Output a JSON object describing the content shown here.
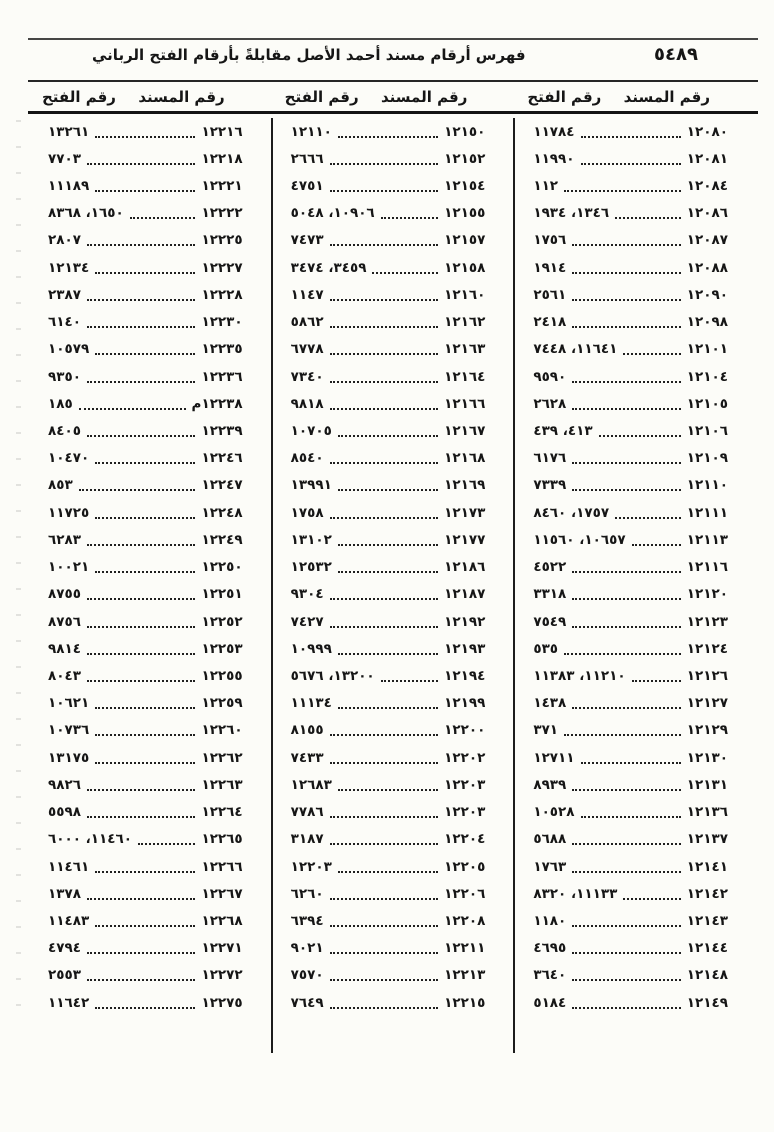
{
  "page": {
    "number": "٥٤٨٩",
    "title": "فهرس أرقام مسند أحمد الأصل مقابلةً بأرقام الفتح الرباني"
  },
  "table": {
    "header_musnad": "رقم المسند",
    "header_fath": "رقم الفتح",
    "columns": [
      {
        "rows": [
          {
            "musnad": "١٢٠٨٠",
            "fath": "١١٧٨٤"
          },
          {
            "musnad": "١٢٠٨١",
            "fath": "١١٩٩٠"
          },
          {
            "musnad": "١٢٠٨٤",
            "fath": "١١٢"
          },
          {
            "musnad": "١٢٠٨٦",
            "fath": "١٣٤٦، ١٩٣٤"
          },
          {
            "musnad": "١٢٠٨٧",
            "fath": "١٧٥٦"
          },
          {
            "musnad": "١٢٠٨٨",
            "fath": "١٩١٤"
          },
          {
            "musnad": "١٢٠٩٠",
            "fath": "٢٥٦١"
          },
          {
            "musnad": "١٢٠٩٨",
            "fath": "٢٤١٨"
          },
          {
            "musnad": "١٢١٠١",
            "fath": "١١٦٤١، ٧٤٤٨"
          },
          {
            "musnad": "١٢١٠٤",
            "fath": "٩٥٩٠"
          },
          {
            "musnad": "١٢١٠٥",
            "fath": "٢٦٢٨"
          },
          {
            "musnad": "١٢١٠٦",
            "fath": "٤١٣، ٤٣٩"
          },
          {
            "musnad": "١٢١٠٩",
            "fath": "٦١٧٦"
          },
          {
            "musnad": "١٢١١٠",
            "fath": "٧٣٣٩"
          },
          {
            "musnad": "١٢١١١",
            "fath": "١٧٥٧، ٨٤٦٠"
          },
          {
            "musnad": "١٢١١٣",
            "fath": "١٠٦٥٧، ١١٥٦٠"
          },
          {
            "musnad": "١٢١١٦",
            "fath": "٤٥٢٢"
          },
          {
            "musnad": "١٢١٢٠",
            "fath": "٣٣١٨"
          },
          {
            "musnad": "١٢١٢٣",
            "fath": "٧٥٤٩"
          },
          {
            "musnad": "١٢١٢٤",
            "fath": "٥٣٥"
          },
          {
            "musnad": "١٢١٢٦",
            "fath": "١١٢١٠، ١١٣٨٣"
          },
          {
            "musnad": "١٢١٢٧",
            "fath": "١٤٣٨"
          },
          {
            "musnad": "١٢١٢٩",
            "fath": "٣٧١"
          },
          {
            "musnad": "١٢١٣٠",
            "fath": "١٢٧١١"
          },
          {
            "musnad": "١٢١٣١",
            "fath": "٨٩٣٩"
          },
          {
            "musnad": "١٢١٣٦",
            "fath": "١٠٥٢٨"
          },
          {
            "musnad": "١٢١٣٧",
            "fath": "٥٦٨٨"
          },
          {
            "musnad": "١٢١٤١",
            "fath": "١٧٦٣"
          },
          {
            "musnad": "١٢١٤٢",
            "fath": "١١١٣٣، ٨٣٢٠"
          },
          {
            "musnad": "١٢١٤٣",
            "fath": "١١٨٠"
          },
          {
            "musnad": "١٢١٤٤",
            "fath": "٤٦٩٥"
          },
          {
            "musnad": "١٢١٤٨",
            "fath": "٣٦٤٠"
          },
          {
            "musnad": "١٢١٤٩",
            "fath": "٥١٨٤"
          }
        ]
      },
      {
        "rows": [
          {
            "musnad": "١٢١٥٠",
            "fath": "١٢١١٠"
          },
          {
            "musnad": "١٢١٥٢",
            "fath": "٢٦٦٦"
          },
          {
            "musnad": "١٢١٥٤",
            "fath": "٤٧٥١"
          },
          {
            "musnad": "١٢١٥٥",
            "fath": "١٠٩٠٦، ٥٠٤٨"
          },
          {
            "musnad": "١٢١٥٧",
            "fath": "٧٤٧٣"
          },
          {
            "musnad": "١٢١٥٨",
            "fath": "٣٤٥٩، ٣٤٧٤"
          },
          {
            "musnad": "١٢١٦٠",
            "fath": "١١٤٧"
          },
          {
            "musnad": "١٢١٦٢",
            "fath": "٥٨٦٢"
          },
          {
            "musnad": "١٢١٦٣",
            "fath": "٦٧٧٨"
          },
          {
            "musnad": "١٢١٦٤",
            "fath": "٧٣٤٠"
          },
          {
            "musnad": "١٢١٦٦",
            "fath": "٩٨١٨"
          },
          {
            "musnad": "١٢١٦٧",
            "fath": "١٠٧٠٥"
          },
          {
            "musnad": "١٢١٦٨",
            "fath": "٨٥٤٠"
          },
          {
            "musnad": "١٢١٦٩",
            "fath": "١٣٩٩١"
          },
          {
            "musnad": "١٢١٧٣",
            "fath": "١٧٥٨"
          },
          {
            "musnad": "١٢١٧٧",
            "fath": "١٣١٠٢"
          },
          {
            "musnad": "١٢١٨٦",
            "fath": "١٢٥٣٢"
          },
          {
            "musnad": "١٢١٨٧",
            "fath": "٩٣٠٤"
          },
          {
            "musnad": "١٢١٩٢",
            "fath": "٧٤٢٧"
          },
          {
            "musnad": "١٢١٩٣",
            "fath": "١٠٩٩٩"
          },
          {
            "musnad": "١٢١٩٤",
            "fath": "١٣٢٠٠، ٥٦٧٦"
          },
          {
            "musnad": "١٢١٩٩",
            "fath": "١١١٣٤"
          },
          {
            "musnad": "١٢٢٠٠",
            "fath": "٨١٥٥"
          },
          {
            "musnad": "١٢٢٠٢",
            "fath": "٧٤٣٣"
          },
          {
            "musnad": "١٢٢٠٣",
            "fath": "١٢٦٨٣"
          },
          {
            "musnad": "١٢٢٠٣",
            "fath": "٧٧٨٦"
          },
          {
            "musnad": "١٢٢٠٤",
            "fath": "٣١٨٧"
          },
          {
            "musnad": "١٢٢٠٥",
            "fath": "١٢٢٠٣"
          },
          {
            "musnad": "١٢٢٠٦",
            "fath": "٦٢٦٠"
          },
          {
            "musnad": "١٢٢٠٨",
            "fath": "٦٣٩٤"
          },
          {
            "musnad": "١٢٢١١",
            "fath": "٩٠٢١"
          },
          {
            "musnad": "١٢٢١٣",
            "fath": "٧٥٧٠"
          },
          {
            "musnad": "١٢٢١٥",
            "fath": "٧٦٤٩"
          }
        ]
      },
      {
        "rows": [
          {
            "musnad": "١٢٢١٦",
            "fath": "١٣٢٦١"
          },
          {
            "musnad": "١٢٢١٨",
            "fath": "٧٧٠٣"
          },
          {
            "musnad": "١٢٢٢١",
            "fath": "١١١٨٩"
          },
          {
            "musnad": "١٢٢٢٢",
            "fath": "١٦٥٠، ٨٣٦٨"
          },
          {
            "musnad": "١٢٢٢٥",
            "fath": "٢٨٠٧"
          },
          {
            "musnad": "١٢٢٢٧",
            "fath": "١٢١٣٤"
          },
          {
            "musnad": "١٢٢٢٨",
            "fath": "٢٣٨٧"
          },
          {
            "musnad": "١٢٢٣٠",
            "fath": "٦١٤٠"
          },
          {
            "musnad": "١٢٢٣٥",
            "fath": "١٠٥٧٩"
          },
          {
            "musnad": "١٢٢٣٦",
            "fath": "٩٣٥٠"
          },
          {
            "musnad": "١٢٢٣٨م",
            "fath": "١٨٥"
          },
          {
            "musnad": "١٢٢٣٩",
            "fath": "٨٤٠٥"
          },
          {
            "musnad": "١٢٢٤٦",
            "fath": "١٠٤٧٠"
          },
          {
            "musnad": "١٢٢٤٧",
            "fath": "٨٥٣"
          },
          {
            "musnad": "١٢٢٤٨",
            "fath": "١١٧٢٥"
          },
          {
            "musnad": "١٢٢٤٩",
            "fath": "٦٢٨٣"
          },
          {
            "musnad": "١٢٢٥٠",
            "fath": "١٠٠٢١"
          },
          {
            "musnad": "١٢٢٥١",
            "fath": "٨٧٥٥"
          },
          {
            "musnad": "١٢٢٥٢",
            "fath": "٨٧٥٦"
          },
          {
            "musnad": "١٢٢٥٣",
            "fath": "٩٨١٤"
          },
          {
            "musnad": "١٢٢٥٥",
            "fath": "٨٠٤٣"
          },
          {
            "musnad": "١٢٢٥٩",
            "fath": "١٠٦٢١"
          },
          {
            "musnad": "١٢٢٦٠",
            "fath": "١٠٧٣٦"
          },
          {
            "musnad": "١٢٢٦٢",
            "fath": "١٣١٧٥"
          },
          {
            "musnad": "١٢٢٦٣",
            "fath": "٩٨٢٦"
          },
          {
            "musnad": "١٢٢٦٤",
            "fath": "٥٥٩٨"
          },
          {
            "musnad": "١٢٢٦٥",
            "fath": "١١٤٦٠، ٦٠٠٠"
          },
          {
            "musnad": "١٢٢٦٦",
            "fath": "١١٤٦١"
          },
          {
            "musnad": "١٢٢٦٧",
            "fath": "١٣٧٨"
          },
          {
            "musnad": "١٢٢٦٨",
            "fath": "١١٤٨٣"
          },
          {
            "musnad": "١٢٢٧١",
            "fath": "٤٧٩٤"
          },
          {
            "musnad": "١٢٢٧٢",
            "fath": "٢٥٥٣"
          },
          {
            "musnad": "١٢٢٧٥",
            "fath": "١١٦٤٢"
          }
        ]
      }
    ]
  }
}
